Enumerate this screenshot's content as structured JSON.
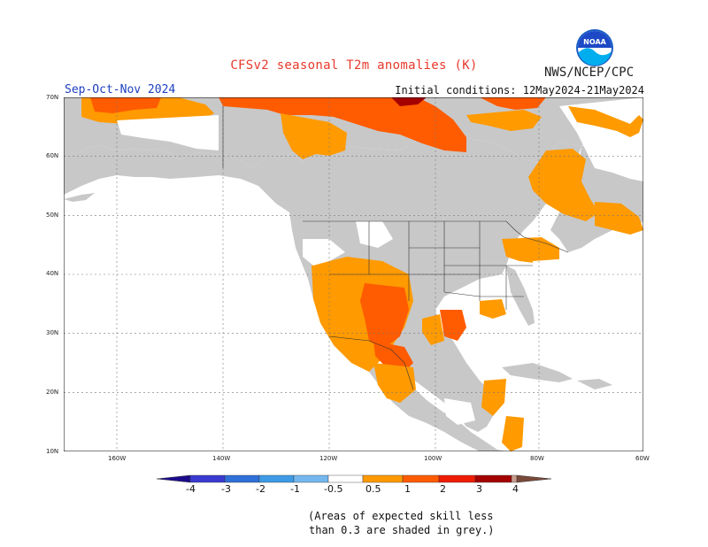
{
  "header": {
    "title": "CFSv2 seasonal T2m anomalies (K)",
    "agency": "NWS/NCEP/CPC",
    "period": "Sep-Oct-Nov 2024",
    "initial_conditions": "Initial conditions: 12May2024-21May2024",
    "logo_text": "NOAA"
  },
  "map": {
    "lat_labels": [
      "70N",
      "60N",
      "50N",
      "40N",
      "30N",
      "20N",
      "10N"
    ],
    "lon_labels": [
      "160W",
      "140W",
      "120W",
      "100W",
      "80W",
      "60W"
    ],
    "land_color": "#c8c8c8",
    "ocean_color": "#ffffff"
  },
  "colorbar": {
    "ticks": [
      "-4",
      "-3",
      "-2",
      "-1",
      "-0.5",
      "0.5",
      "1",
      "2",
      "3",
      "4"
    ],
    "colors": [
      "#1c0c8c",
      "#3a3ad0",
      "#2f6fd8",
      "#3d9be6",
      "#74b7ee",
      "#ffffff",
      "#ff9a00",
      "#ff5b00",
      "#ee1c00",
      "#a40000",
      "#c89b8d",
      "#7a4a3a"
    ]
  },
  "note": {
    "line1": "(Areas of expected skill less",
    "line2": "than 0.3 are shaded in grey.)"
  }
}
